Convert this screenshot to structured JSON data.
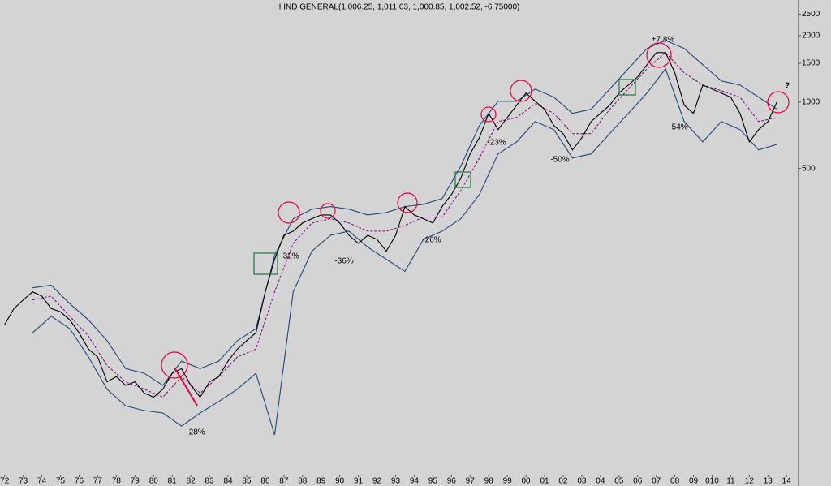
{
  "chart_data": {
    "type": "line",
    "title": "I IND GENERAL(1,006.25, 1,011.03, 1,000.85, 1,002.52, -6.75000)",
    "log_scale": true,
    "xlim": [
      1971.75,
      2014.6
    ],
    "ylim": [
      20.5,
      2900
    ],
    "yticks": [
      2500,
      2000,
      1500,
      1000,
      500
    ],
    "xticks": [
      {
        "value": 1972,
        "label": "72"
      },
      {
        "value": 1973,
        "label": "73"
      },
      {
        "value": 1974,
        "label": "74"
      },
      {
        "value": 1975,
        "label": "75"
      },
      {
        "value": 1976,
        "label": "76"
      },
      {
        "value": 1977,
        "label": "77"
      },
      {
        "value": 1978,
        "label": "78"
      },
      {
        "value": 1979,
        "label": "79"
      },
      {
        "value": 1980,
        "label": "80"
      },
      {
        "value": 1981,
        "label": "81"
      },
      {
        "value": 1982,
        "label": "82"
      },
      {
        "value": 1983,
        "label": "83"
      },
      {
        "value": 1984,
        "label": "84"
      },
      {
        "value": 1985,
        "label": "85"
      },
      {
        "value": 1986,
        "label": "86"
      },
      {
        "value": 1987,
        "label": "87"
      },
      {
        "value": 1988,
        "label": "88"
      },
      {
        "value": 1989,
        "label": "89"
      },
      {
        "value": 1990,
        "label": "90"
      },
      {
        "value": 1991,
        "label": "91"
      },
      {
        "value": 1992,
        "label": "92"
      },
      {
        "value": 1993,
        "label": "93"
      },
      {
        "value": 1994,
        "label": "94"
      },
      {
        "value": 1995,
        "label": "95"
      },
      {
        "value": 1996,
        "label": "96"
      },
      {
        "value": 1997,
        "label": "97"
      },
      {
        "value": 1998,
        "label": "98"
      },
      {
        "value": 1999,
        "label": "99"
      },
      {
        "value": 2000,
        "label": "00"
      },
      {
        "value": 2001,
        "label": "01"
      },
      {
        "value": 2002,
        "label": "02"
      },
      {
        "value": 2003,
        "label": "03"
      },
      {
        "value": 2004,
        "label": "04"
      },
      {
        "value": 2005,
        "label": "05"
      },
      {
        "value": 2006,
        "label": "06"
      },
      {
        "value": 2007,
        "label": "07"
      },
      {
        "value": 2008,
        "label": "08"
      },
      {
        "value": 2009,
        "label": "09"
      },
      {
        "value": 2010,
        "label": "010"
      },
      {
        "value": 2011,
        "label": "11"
      },
      {
        "value": 2012,
        "label": "12"
      },
      {
        "value": 2013,
        "label": "13"
      },
      {
        "value": 2014,
        "label": "14"
      }
    ],
    "series": [
      {
        "color": "#1f4a78",
        "line_style": "solid",
        "x": [
          1973.5,
          1974.5,
          1975.5,
          1976.5,
          1977.5,
          1978.5,
          1979.5,
          1980.5,
          1981.5,
          1982.5,
          1983.5,
          1984.5,
          1985.5,
          1986.5,
          1987.5,
          1988.5,
          1989.5,
          1990.5,
          1991.5,
          1992.5,
          1993.5,
          1994.5,
          1995.5,
          1996.5,
          1997.5,
          1998.5,
          1999.5,
          2000.5,
          2001.5,
          2002.5,
          2003.5,
          2004.5,
          2005.5,
          2006.5,
          2007.5,
          2008.5,
          2009.5,
          2010.5,
          2011.5,
          2012.5,
          2013.5
        ],
        "values": [
          144,
          148,
          122,
          103,
          83,
          62,
          59,
          52,
          67,
          62,
          67,
          83,
          94,
          202,
          296,
          327,
          336,
          327,
          308,
          316,
          336,
          344,
          365,
          512,
          782,
          1008,
          1008,
          1145,
          1052,
          889,
          927,
          1145,
          1415,
          1749,
          1902,
          1749,
          1476,
          1246,
          1194,
          1052,
          927
        ]
      },
      {
        "color": "#800080",
        "line_style": "dashed",
        "x": [
          1973.5,
          1974.5,
          1975.5,
          1976.5,
          1977.5,
          1978.5,
          1979.5,
          1980.5,
          1981.5,
          1982.5,
          1983.5,
          1984.5,
          1985.5,
          1986.5,
          1987.5,
          1988.5,
          1989.5,
          1990.5,
          1991.5,
          1992.5,
          1993.5,
          1994.5,
          1995.5,
          1996.5,
          1997.5,
          1998.5,
          1999.5,
          2000.5,
          2001.5,
          2002.5,
          2003.5,
          2004.5,
          2005.5,
          2006.5,
          2007.5,
          2008.5,
          2009.5,
          2010.5,
          2011.5,
          2012.5,
          2013.5
        ],
        "values": [
          127,
          132,
          107,
          87,
          64,
          54,
          50,
          46,
          57,
          48,
          57,
          70,
          76,
          138,
          229,
          283,
          296,
          283,
          260,
          260,
          276,
          301,
          301,
          397,
          558,
          816,
          851,
          983,
          889,
          719,
          719,
          927,
          1145,
          1415,
          1675,
          1356,
          1194,
          1126,
          1052,
          816,
          851
        ]
      },
      {
        "color": "#1f4a78",
        "line_style": "solid",
        "x": [
          1973.5,
          1974.5,
          1975.5,
          1976.5,
          1977.5,
          1978.5,
          1979.5,
          1980.5,
          1981.5,
          1982.5,
          1983.5,
          1984.5,
          1985.5,
          1986.5,
          1987.5,
          1988.5,
          1989.5,
          1990.5,
          1991.5,
          1992.5,
          1993.5,
          1994.5,
          1995.5,
          1996.5,
          1997.5,
          1998.5,
          1999.5,
          2000.5,
          2001.5,
          2002.5,
          2003.5,
          2004.5,
          2005.5,
          2006.5,
          2007.5,
          2008.5,
          2009.5,
          2010.5,
          2011.5,
          2012.5,
          2013.5
        ],
        "values": [
          90,
          107,
          94,
          70,
          50,
          42,
          40,
          39,
          34,
          39,
          44,
          50,
          59,
          31,
          138,
          211,
          249,
          260,
          220,
          194,
          171,
          239,
          260,
          296,
          381,
          582,
          660,
          816,
          750,
          558,
          582,
          719,
          889,
          1097,
          1415,
          816,
          660,
          816,
          750,
          607,
          644
        ]
      },
      {
        "color": "#000000",
        "line_style": "solid",
        "x": [
          1972,
          1972.5,
          1973,
          1973.5,
          1974,
          1974.5,
          1975,
          1975.5,
          1976,
          1976.5,
          1977,
          1977.5,
          1978,
          1978.5,
          1979,
          1979.5,
          1980,
          1980.5,
          1981,
          1981.5,
          1982,
          1982.5,
          1983,
          1983.5,
          1984,
          1984.5,
          1985,
          1985.5,
          1986,
          1986.5,
          1987,
          1987.5,
          1988,
          1988.5,
          1989,
          1989.5,
          1990,
          1990.5,
          1991,
          1991.5,
          1992,
          1992.5,
          1993,
          1993.5,
          1994,
          1994.5,
          1995,
          1995.5,
          1996,
          1996.5,
          1997,
          1997.5,
          1998,
          1998.5,
          1999,
          1999.5,
          2000,
          2000.5,
          2001,
          2001.5,
          2002,
          2002.5,
          2003,
          2003.5,
          2004,
          2004.5,
          2005,
          2005.5,
          2006,
          2006.5,
          2007,
          2007.5,
          2008,
          2008.5,
          2009,
          2009.5,
          2010,
          2010.5,
          2011,
          2011.5,
          2012,
          2012.5,
          2013,
          2013.5
        ],
        "values": [
          98,
          116,
          127,
          138,
          132,
          116,
          112,
          103,
          90,
          76,
          70,
          54,
          57,
          52,
          54,
          48,
          46,
          50,
          59,
          62,
          52,
          46,
          54,
          57,
          67,
          76,
          83,
          90,
          138,
          194,
          249,
          260,
          283,
          296,
          308,
          308,
          283,
          249,
          229,
          249,
          239,
          211,
          249,
          336,
          308,
          296,
          283,
          336,
          381,
          451,
          582,
          689,
          889,
          750,
          851,
          967,
          1097,
          1008,
          927,
          782,
          719,
          607,
          689,
          816,
          889,
          967,
          1097,
          1194,
          1300,
          1476,
          1675,
          1675,
          1356,
          967,
          889,
          1194,
          1145,
          1097,
          1052,
          889,
          660,
          750,
          816,
          1008
        ]
      }
    ],
    "annotations": [
      {
        "text": "-28%",
        "color": "#e0003c"
      },
      {
        "text": "-32%",
        "color": "#e0003c"
      },
      {
        "text": "-36%",
        "color": "#e0003c"
      },
      {
        "text": "-26%",
        "color": "#e0003c"
      },
      {
        "text": "-23%",
        "color": "#e0003c"
      },
      {
        "text": "-50%",
        "color": "#e0003c"
      },
      {
        "text": "-54%",
        "color": "#e0003c"
      },
      {
        "text": "+7.8%",
        "color": "#1a1aff"
      },
      {
        "text": "?",
        "color": "#e0003c"
      }
    ]
  }
}
